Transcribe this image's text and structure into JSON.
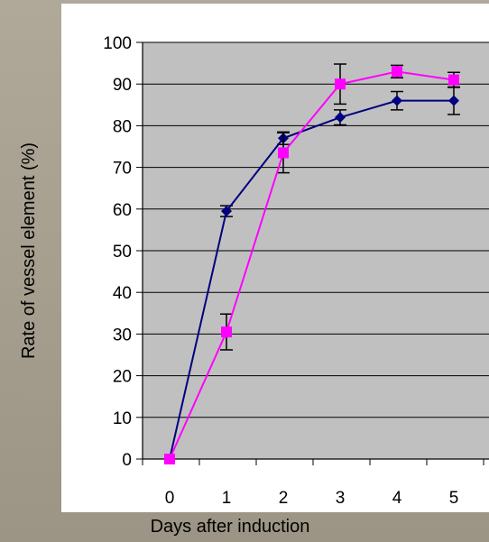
{
  "chart_data": {
    "type": "line",
    "title": "",
    "xlabel": "Days after induction",
    "ylabel": "Rate of vessel element (%)",
    "categories": [
      "0",
      "1",
      "2",
      "3",
      "4",
      "5"
    ],
    "ylim": [
      0,
      100
    ],
    "yticks": [
      "0",
      "10",
      "20",
      "30",
      "40",
      "50",
      "60",
      "70",
      "80",
      "90",
      "100"
    ],
    "grid": true,
    "legend": "none",
    "plot_background": "#c0c0c0",
    "series": [
      {
        "color": "#000080",
        "marker": "diamond",
        "values": [
          0,
          59.5,
          77,
          82,
          86,
          86
        ],
        "errors": [
          0,
          1.3,
          1.5,
          1.8,
          2.2,
          3.3
        ]
      },
      {
        "color": "#ff00ff",
        "marker": "square",
        "values": [
          0,
          30.5,
          73.5,
          90,
          93,
          91
        ],
        "errors": [
          0,
          4.3,
          4.8,
          4.8,
          1.5,
          1.8
        ]
      }
    ]
  }
}
